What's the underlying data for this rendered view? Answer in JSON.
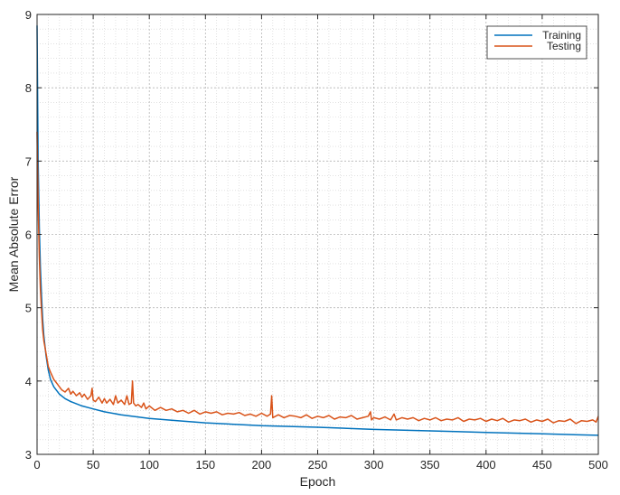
{
  "chart_data": {
    "type": "line",
    "xlabel": "Epoch",
    "ylabel": "Mean Absolute Error",
    "xlim": [
      0,
      500
    ],
    "ylim": [
      3,
      9
    ],
    "xticks": [
      0,
      50,
      100,
      150,
      200,
      250,
      300,
      350,
      400,
      450,
      500
    ],
    "yticks": [
      3,
      4,
      5,
      6,
      7,
      8,
      9
    ],
    "grid": "major-and-minor dotted",
    "legend_position": "top-right",
    "series": [
      {
        "name": "Training",
        "color": "#0072BD",
        "x": [
          0,
          1,
          2,
          3,
          4,
          5,
          6,
          8,
          10,
          12,
          15,
          20,
          25,
          30,
          40,
          50,
          60,
          75,
          100,
          125,
          150,
          200,
          250,
          300,
          350,
          400,
          450,
          500
        ],
        "y": [
          8.85,
          7.0,
          6.1,
          5.55,
          5.15,
          4.85,
          4.62,
          4.35,
          4.15,
          4.02,
          3.92,
          3.82,
          3.76,
          3.72,
          3.66,
          3.62,
          3.58,
          3.54,
          3.49,
          3.46,
          3.43,
          3.39,
          3.37,
          3.34,
          3.32,
          3.3,
          3.28,
          3.26
        ]
      },
      {
        "name": "Testing",
        "color": "#D95319",
        "x": [
          0,
          1,
          2,
          3,
          4,
          5,
          6,
          8,
          10,
          12,
          15,
          18,
          20,
          22,
          25,
          28,
          30,
          32,
          35,
          38,
          40,
          42,
          45,
          48,
          49,
          50,
          52,
          55,
          58,
          60,
          62,
          65,
          68,
          70,
          72,
          75,
          78,
          80,
          82,
          84,
          85,
          86,
          88,
          90,
          93,
          95,
          97,
          100,
          105,
          110,
          115,
          120,
          125,
          130,
          135,
          140,
          145,
          150,
          155,
          160,
          165,
          170,
          175,
          180,
          185,
          190,
          195,
          200,
          205,
          208,
          209,
          210,
          215,
          220,
          225,
          230,
          235,
          240,
          245,
          250,
          255,
          260,
          265,
          270,
          275,
          280,
          285,
          290,
          295,
          297,
          298,
          300,
          305,
          310,
          315,
          318,
          320,
          325,
          330,
          335,
          340,
          345,
          350,
          355,
          360,
          365,
          370,
          375,
          380,
          385,
          390,
          395,
          400,
          405,
          410,
          415,
          420,
          425,
          430,
          435,
          440,
          445,
          450,
          455,
          460,
          465,
          470,
          475,
          480,
          485,
          490,
          495,
          498,
          500
        ],
        "y": [
          7.4,
          6.4,
          5.7,
          5.25,
          4.95,
          4.7,
          4.55,
          4.38,
          4.2,
          4.12,
          4.02,
          3.96,
          3.92,
          3.88,
          3.85,
          3.9,
          3.82,
          3.86,
          3.8,
          3.84,
          3.78,
          3.82,
          3.75,
          3.8,
          3.9,
          3.74,
          3.72,
          3.78,
          3.7,
          3.76,
          3.7,
          3.75,
          3.68,
          3.8,
          3.7,
          3.74,
          3.68,
          3.8,
          3.68,
          3.7,
          4.0,
          3.7,
          3.66,
          3.68,
          3.64,
          3.7,
          3.62,
          3.66,
          3.6,
          3.64,
          3.6,
          3.62,
          3.58,
          3.6,
          3.56,
          3.6,
          3.55,
          3.58,
          3.56,
          3.58,
          3.54,
          3.56,
          3.55,
          3.57,
          3.53,
          3.55,
          3.52,
          3.56,
          3.52,
          3.55,
          3.8,
          3.5,
          3.54,
          3.5,
          3.53,
          3.52,
          3.5,
          3.54,
          3.49,
          3.52,
          3.5,
          3.53,
          3.48,
          3.51,
          3.5,
          3.53,
          3.48,
          3.5,
          3.52,
          3.58,
          3.47,
          3.5,
          3.48,
          3.51,
          3.47,
          3.55,
          3.47,
          3.5,
          3.48,
          3.5,
          3.46,
          3.49,
          3.47,
          3.5,
          3.46,
          3.48,
          3.47,
          3.5,
          3.45,
          3.48,
          3.47,
          3.49,
          3.45,
          3.48,
          3.46,
          3.49,
          3.44,
          3.47,
          3.46,
          3.48,
          3.44,
          3.47,
          3.45,
          3.48,
          3.43,
          3.46,
          3.45,
          3.48,
          3.42,
          3.46,
          3.45,
          3.47,
          3.44,
          3.52
        ]
      }
    ]
  }
}
